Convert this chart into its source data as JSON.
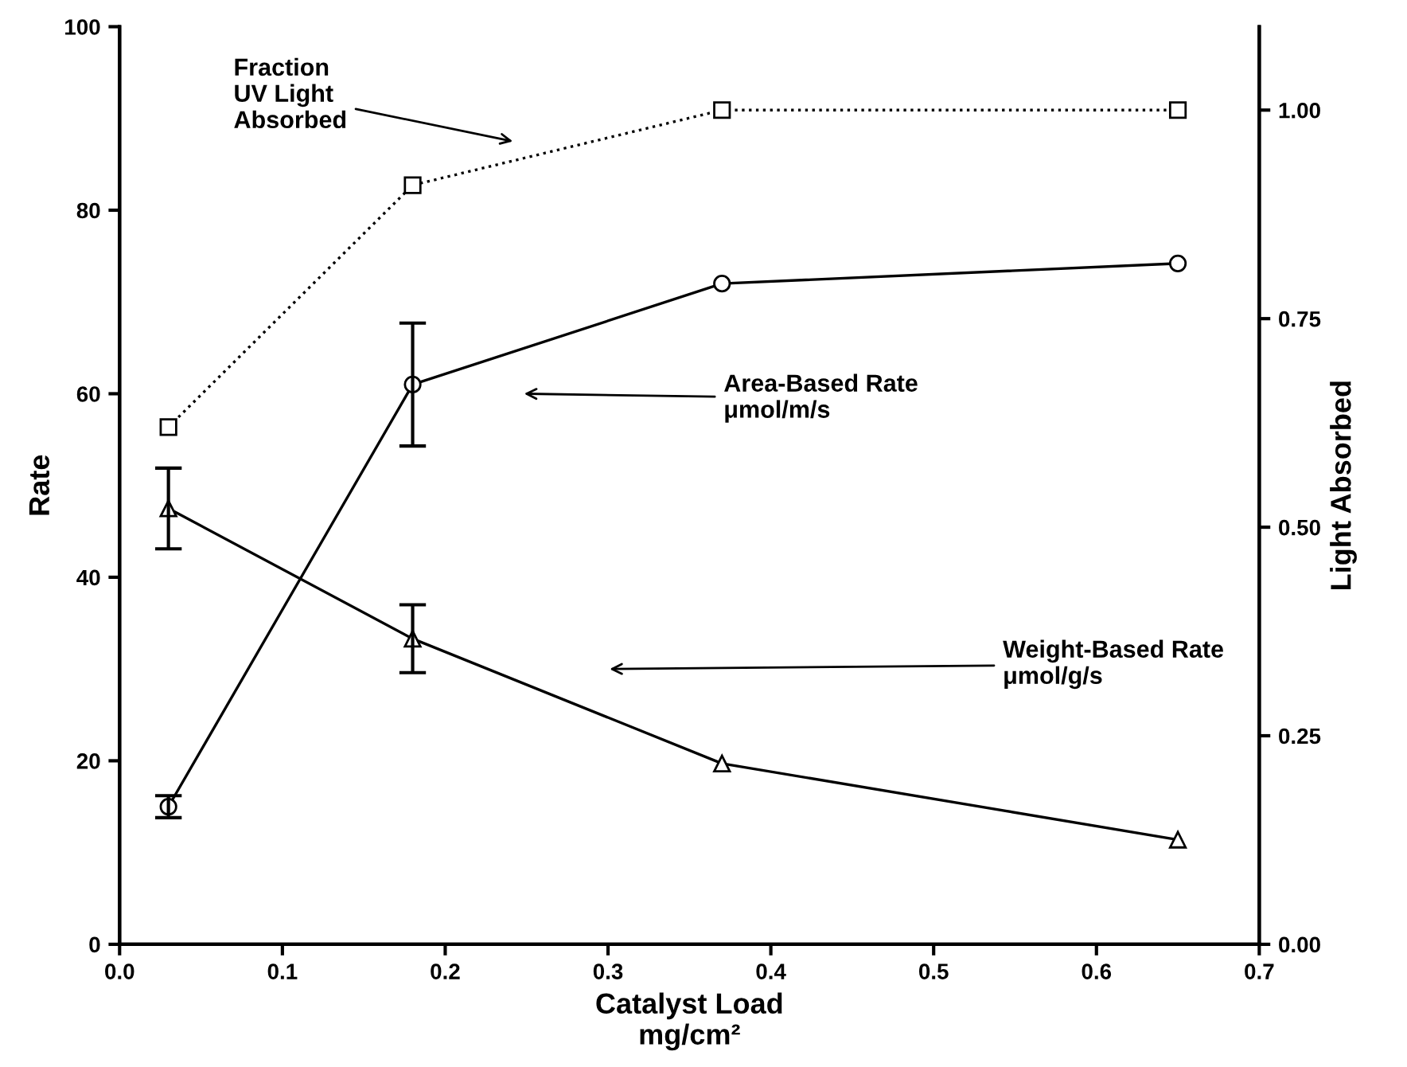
{
  "chart_data": {
    "type": "line",
    "xlabel": "Catalyst Load\nmg/cm²",
    "ylabel": "Rate",
    "y2label": "Light Absorbed",
    "xlim": [
      0.0,
      0.7
    ],
    "xticks": [
      {
        "value": 0,
        "label": "0.0"
      },
      0.1,
      0.2,
      0.3,
      0.4,
      0.5,
      0.6,
      0.7
    ],
    "ylim": [
      0,
      100
    ],
    "yticks": [
      0,
      20,
      40,
      60,
      80,
      100
    ],
    "y2lim": [
      0,
      1.1
    ],
    "y2ticks": [
      {
        "value": 0,
        "label": "0.00"
      },
      0.25,
      {
        "value": 0.5,
        "label": "0.50"
      },
      0.75,
      {
        "value": 1,
        "label": "1.00"
      }
    ],
    "x": [
      0.03,
      0.18,
      0.37,
      0.65
    ],
    "grid": false,
    "legend": false,
    "series": [
      {
        "color": "#000000",
        "axis": "y2",
        "marker": "square",
        "line_style": "dotted",
        "values": [
          0.62,
          0.91,
          1.0,
          1.0
        ]
      },
      {
        "color": "#000000",
        "marker": "circle",
        "line_style": "solid",
        "values": [
          15,
          61,
          72,
          74.2
        ],
        "errors": [
          1.2,
          6.7,
          null,
          null
        ]
      },
      {
        "color": "#000000",
        "marker": "triangle",
        "line_style": "solid",
        "values": [
          47.5,
          33.3,
          19.7,
          11.4
        ],
        "errors": [
          4.4,
          3.7,
          null,
          null
        ]
      }
    ],
    "annotations": [
      "Fraction\nUV Light\nAbsorbed",
      "Area-Based Rate\nμmol/m/s",
      "Weight-Based Rate\nμmol/g/s"
    ]
  }
}
